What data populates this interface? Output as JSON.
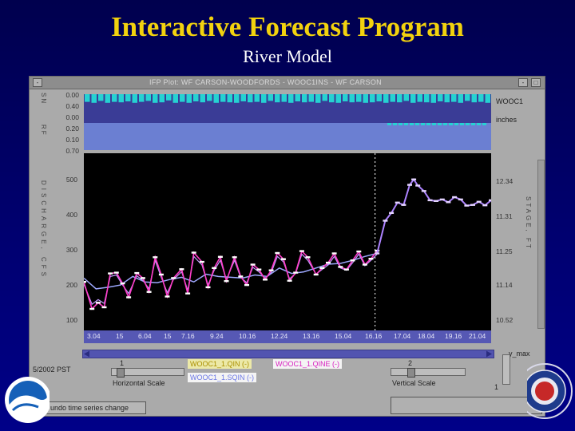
{
  "slide": {
    "title": "Interactive Forecast Program",
    "subtitle": "River Model"
  },
  "window": {
    "title": "IFP Plot: WF CARSON-WOODFORDS - WOOC1INS - WF CARSON",
    "min_btn": "-",
    "max_btn": "□"
  },
  "precip": {
    "side_label_1": "SN",
    "side_label_2": "RF",
    "ticks": [
      "0.00",
      "0.40",
      "0.00",
      "0.20",
      "0.10",
      "0.70"
    ],
    "station": "WOOC1",
    "units": "inches"
  },
  "main_plot": {
    "left_axis_label": "DISCHARGE, CFS",
    "right_axis_label": "STAGE, FT",
    "yticks": [
      "500",
      "400",
      "300",
      "200",
      "100"
    ],
    "stage_ticks": [
      "12.34",
      "11.31",
      "11.25",
      "11.14",
      "10.52"
    ],
    "xticks": [
      "3.04",
      "15",
      "6.04",
      "15",
      "7.16",
      "9.24",
      "10.16",
      "12.24",
      "13.16",
      "15.04",
      "16.16",
      "17.04",
      "18.04",
      "19.16",
      "21.04"
    ]
  },
  "controls": {
    "date_label": "5/2002 PST",
    "hscale_value": "1",
    "hscale_label": "Horizontal Scale",
    "vscale_value": "2",
    "vscale_label": "Vertical Scale",
    "ymax_label": "y_max",
    "ymax_value": "1",
    "legend_1": "WOOC1_1.QIN (-)",
    "legend_2": "WOOC1_1.QINE (-)",
    "legend_3": "WOOC1_1.SQIN (-)",
    "undo_label": "undo time series change"
  },
  "colors": {
    "observed": "#ff3cc8",
    "simulated": "#c39bff",
    "sqin": "#9ea8ff",
    "future": "#ad83ff",
    "title": "#f2d20e"
  },
  "chart_data": {
    "type": "line",
    "ylim": [
      100,
      560
    ],
    "x_range": [
      0,
      100
    ],
    "forecast_start_x": 71.5,
    "series": [
      {
        "key": "observed",
        "x": [
          0,
          2,
          3.5,
          5,
          6.5,
          8,
          9.5,
          11,
          13,
          14.5,
          16,
          17.5,
          19,
          20.5,
          22,
          24,
          25.5,
          27,
          29,
          30.5,
          32,
          33.5,
          35,
          37,
          38.5,
          40,
          41.5,
          43,
          44.5,
          46,
          47.5,
          49,
          50.5,
          52,
          53.5,
          55,
          57,
          58.5,
          60,
          61.5,
          63,
          64.5,
          66,
          67.5,
          69,
          70.5,
          72
        ],
        "values": [
          226,
          156,
          172,
          160,
          248,
          250,
          222,
          186,
          249,
          236,
          200,
          290,
          245,
          188,
          236,
          259,
          196,
          302,
          278,
          212,
          262,
          291,
          228,
          290,
          240,
          218,
          271,
          258,
          232,
          256,
          301,
          285,
          229,
          250,
          306,
          290,
          245,
          262,
          276,
          300,
          265,
          258,
          282,
          305,
          271,
          286,
          307
        ]
      },
      {
        "key": "simulated",
        "x": [
          0,
          2,
          3.5,
          5,
          6.5,
          8,
          9.5,
          11,
          13,
          14.5,
          16,
          17.5,
          19,
          20.5,
          22,
          24,
          25.5,
          27,
          29,
          30.5,
          32,
          33.5,
          35,
          37,
          38.5,
          40,
          41.5,
          43,
          44.5,
          46,
          47.5,
          49,
          50.5,
          52,
          53.5,
          55,
          57,
          58.5,
          60,
          61.5,
          63,
          64.5,
          66,
          67.5,
          69,
          70.5,
          72
        ],
        "values": [
          220,
          168,
          180,
          170,
          240,
          244,
          218,
          196,
          242,
          230,
          208,
          282,
          238,
          198,
          232,
          252,
          204,
          292,
          270,
          218,
          256,
          282,
          232,
          282,
          238,
          224,
          264,
          252,
          236,
          250,
          292,
          278,
          234,
          248,
          298,
          282,
          246,
          258,
          270,
          292,
          262,
          256,
          276,
          298,
          268,
          282,
          298
        ]
      },
      {
        "key": "sqin",
        "x": [
          0,
          3,
          6,
          9,
          12,
          15,
          18,
          21,
          24,
          27,
          30,
          33,
          36,
          39,
          42,
          45,
          48,
          51,
          54,
          57,
          60,
          63,
          66,
          69,
          72
        ],
        "values": [
          236,
          208,
          212,
          218,
          240,
          226,
          224,
          232,
          238,
          226,
          246,
          240,
          238,
          236,
          244,
          240,
          262,
          248,
          252,
          262,
          272,
          274,
          282,
          292,
          300
        ]
      },
      {
        "key": "future",
        "x": [
          72,
          74,
          75.5,
          77,
          78.5,
          80,
          81,
          82,
          83.5,
          85,
          86.5,
          88,
          89.5,
          91,
          92.5,
          94,
          95.5,
          97,
          98.5,
          100
        ],
        "values": [
          300,
          385,
          405,
          432,
          426,
          478,
          492,
          476,
          462,
          438,
          436,
          440,
          433,
          446,
          440,
          424,
          426,
          434,
          425,
          438
        ]
      }
    ],
    "precip_bars": [
      16,
      18,
      14,
      18,
      16,
      17,
      15,
      18,
      16,
      14,
      18,
      17,
      13,
      18,
      16,
      18,
      15,
      17,
      14,
      18,
      16,
      17,
      18,
      15,
      17,
      16,
      18,
      14,
      17,
      16,
      18,
      15,
      17,
      16,
      18,
      14,
      17,
      18,
      15,
      17,
      16,
      18,
      17,
      15,
      18,
      16,
      17,
      14,
      18,
      16,
      17,
      18,
      15,
      17,
      16,
      18,
      14,
      17,
      16,
      18
    ]
  }
}
